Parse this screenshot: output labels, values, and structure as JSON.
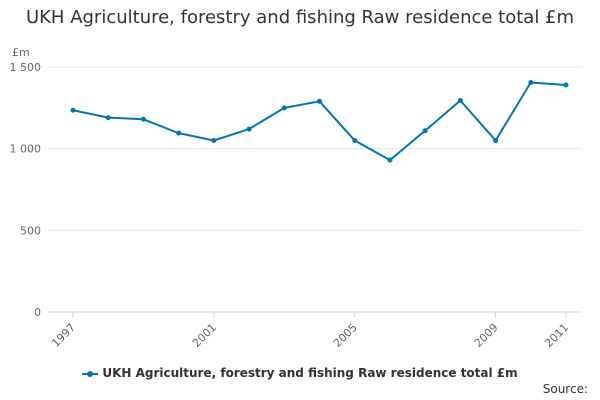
{
  "chart_data": {
    "type": "line",
    "title": "UKH Agriculture, forestry and fishing Raw residence total £m",
    "ylabel": "£m",
    "xlabel": "",
    "x": [
      1997,
      1998,
      1999,
      2000,
      2001,
      2002,
      2003,
      2004,
      2005,
      2006,
      2007,
      2008,
      2009,
      2010,
      2011
    ],
    "xtick_labels": [
      "1997",
      "2001",
      "2005",
      "2009",
      "2011"
    ],
    "xtick_values": [
      1997,
      2001,
      2005,
      2009,
      2011
    ],
    "ylim": [
      0,
      1500
    ],
    "yticks": [
      0,
      500,
      1000,
      1500
    ],
    "ytick_labels": [
      "0",
      "500",
      "1 000",
      "1 500"
    ],
    "series": [
      {
        "name": "UKH Agriculture, forestry and fishing Raw residence total £m",
        "color": "#0076b4",
        "values": [
          1235,
          1190,
          1180,
          1095,
          1050,
          1120,
          1250,
          1290,
          1050,
          930,
          1110,
          1295,
          1050,
          1405,
          1390
        ]
      }
    ],
    "grid": true,
    "legend_position": "bottom-center"
  },
  "footer": {
    "source_label": "Source:"
  }
}
